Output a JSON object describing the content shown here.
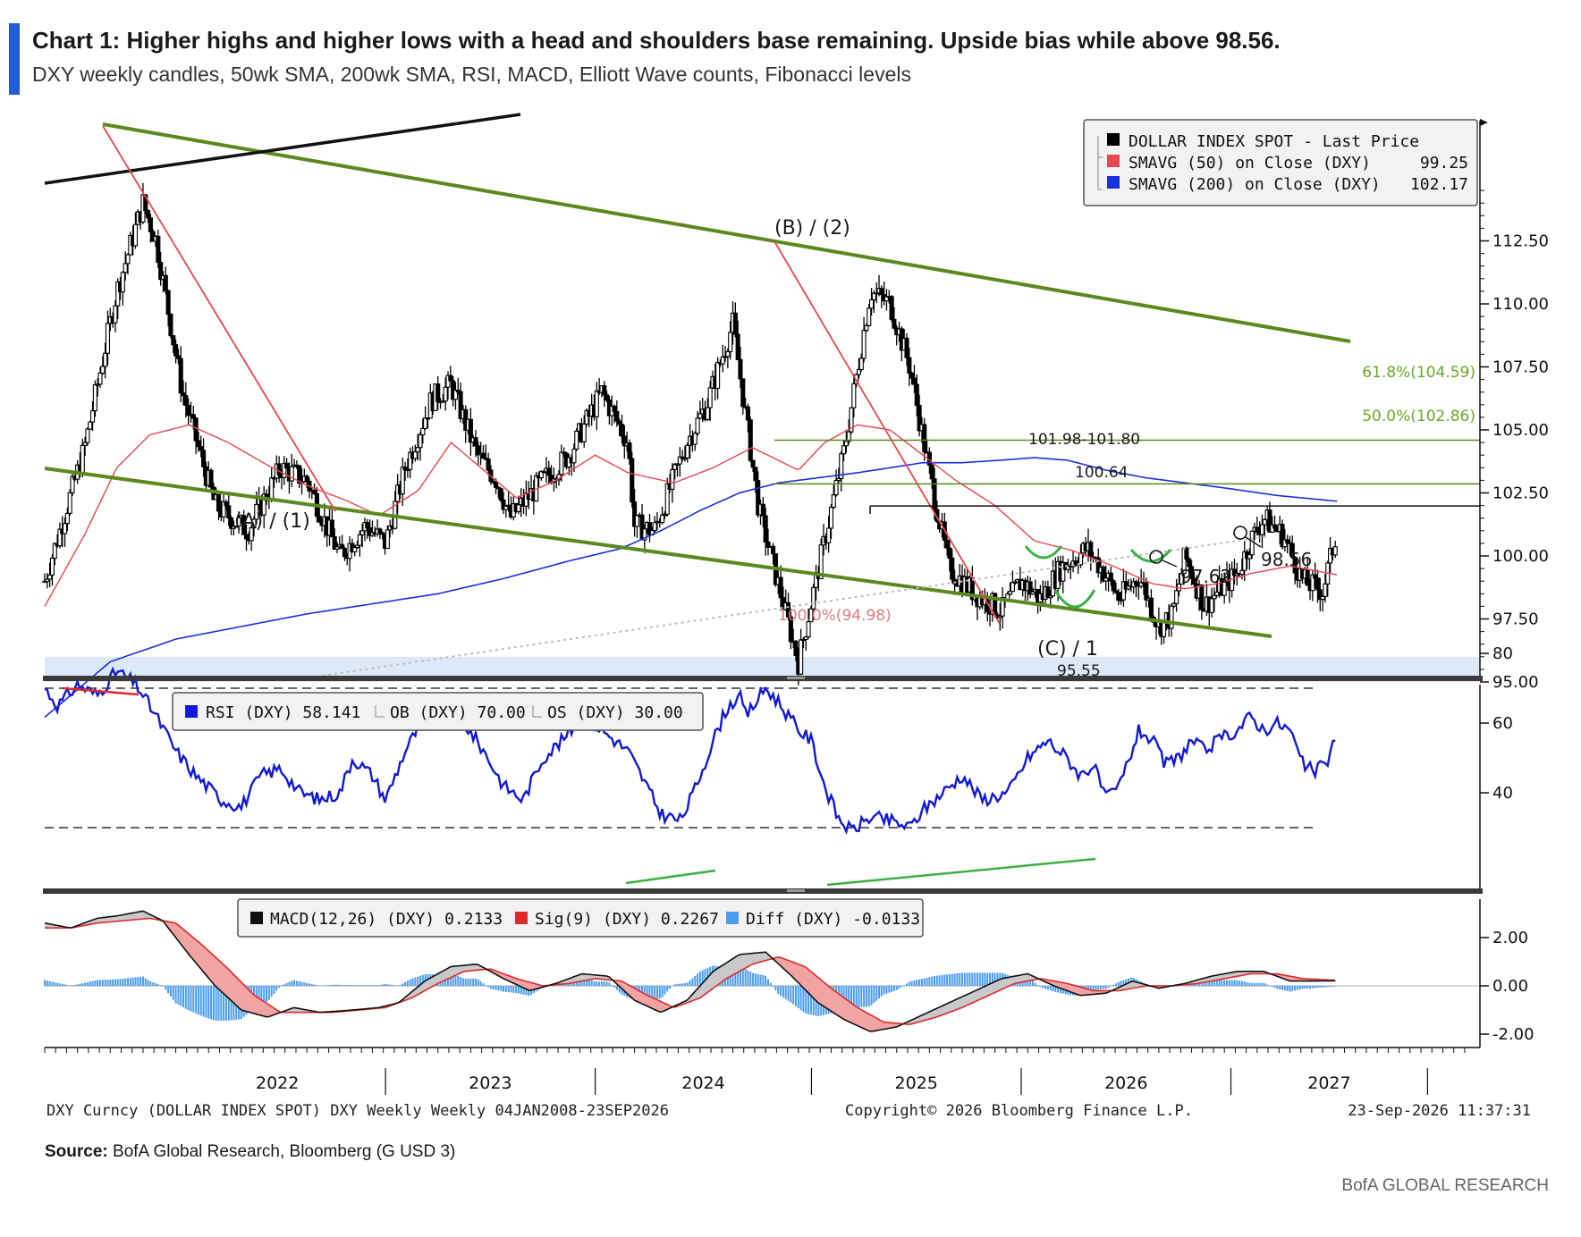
{
  "header": {
    "title": "Chart 1: Higher highs and higher lows with a head and shoulders base remaining. Upside bias while above 98.56.",
    "subtitle": "DXY weekly candles, 50wk SMA, 200wk SMA, RSI, MACD, Elliott Wave counts, Fibonacci levels"
  },
  "footer": {
    "source_label": "Source:",
    "source_text": "BofA Global Research, Bloomberg (G USD 3)",
    "brand": "BofA GLOBAL RESEARCH",
    "bloomberg_left": "DXY Curncy (DOLLAR INDEX SPOT) DXY Weekly Weekly 04JAN2008-23SEP2026",
    "bloomberg_center": "Copyright© 2026 Bloomberg Finance L.P.",
    "bloomberg_right": "23-Sep-2026 11:37:31"
  },
  "colors": {
    "accent": "#1f5fd6",
    "candle": "#000000",
    "sma50": "#e8474f",
    "sma200": "#1a2fe0",
    "channel": "#5a8a1e",
    "fib_text": "#6aa82a",
    "downtrend": "#e8474f",
    "rsi": "#1219d6",
    "macd": "#111111",
    "signal": "#e02a2a",
    "diff": "#4a9cf0",
    "support_zone": "#dde9f8"
  },
  "chart_data": [
    {
      "type": "candlestick",
      "panel": "price",
      "x_axis": {
        "labels": [
          "2022",
          "2023",
          "2024",
          "2025",
          "2026",
          "2027"
        ]
      },
      "y_axis": {
        "ticks": [
          "112.50",
          "110.00",
          "107.50",
          "105.00",
          "102.50",
          "100.00",
          "97.50",
          "95.00"
        ],
        "ylim": [
          93,
          116
        ]
      },
      "legend": [
        {
          "label": "DOLLAR INDEX SPOT - Last Price",
          "value": "",
          "color": "#000000"
        },
        {
          "label": "SMAVG (50)  on Close (DXY)",
          "value": "99.25",
          "color": "#e8474f"
        },
        {
          "label": "SMAVG (200)  on Close (DXY)",
          "value": "102.17",
          "color": "#1a2fe0"
        }
      ],
      "legend_position": "top-right",
      "annotations": {
        "fib_618": "61.8%(104.59)",
        "fib_500": "50.0%(102.86)",
        "fib_100": "100.0%(94.98)",
        "resistance": "101.98-101.80",
        "high_label": "100.64",
        "low_97": "97.62",
        "low_98": "98.56",
        "wave_a": "(A) / (1)",
        "wave_b": "(B) / (2)",
        "wave_c": "(C) / 1",
        "low_95": "95.55"
      },
      "levels": {
        "fib_618": 104.59,
        "fib_500": 102.86,
        "resistance": 101.98,
        "fib_100": 94.98,
        "zone_low": 95.0,
        "zone_high": 96.0
      },
      "anchors": [
        [
          2021.0,
          99.0
        ],
        [
          2021.3,
          104.2
        ],
        [
          2021.55,
          110.5
        ],
        [
          2021.75,
          114.0
        ],
        [
          2021.85,
          112.5
        ],
        [
          2022.05,
          106.5
        ],
        [
          2022.3,
          102.0
        ],
        [
          2022.55,
          101.0
        ],
        [
          2022.8,
          103.5
        ],
        [
          2023.0,
          103.0
        ],
        [
          2023.25,
          100.0
        ],
        [
          2023.45,
          101.2
        ],
        [
          2023.6,
          100.5
        ],
        [
          2023.75,
          103.5
        ],
        [
          2023.95,
          106.2
        ],
        [
          2024.1,
          106.8
        ],
        [
          2024.3,
          104.0
        ],
        [
          2024.45,
          103.0
        ],
        [
          2024.55,
          101.5
        ],
        [
          2024.8,
          103.0
        ],
        [
          2025.0,
          104.0
        ],
        [
          2025.25,
          106.5
        ],
        [
          2025.45,
          104.5
        ],
        [
          2025.5,
          101.2
        ],
        [
          2025.65,
          101.0
        ],
        [
          2025.9,
          104.5
        ],
        [
          2026.05,
          106.0
        ],
        [
          2026.25,
          109.2
        ],
        [
          2026.45,
          101.8
        ],
        [
          2026.75,
          95.8
        ],
        [
          2027.1,
          104.2
        ],
        [
          2027.3,
          110.5
        ],
        [
          2027.45,
          110.0
        ],
        [
          2027.6,
          107.5
        ],
        [
          2027.75,
          103.3
        ],
        [
          2027.9,
          99.5
        ],
        [
          2028.1,
          98.5
        ],
        [
          2028.3,
          97.8
        ],
        [
          2028.45,
          99.0
        ],
        [
          2028.6,
          98.3
        ],
        [
          2028.75,
          99.5
        ],
        [
          2028.95,
          100.3
        ],
        [
          2029.05,
          99.6
        ],
        [
          2029.2,
          98.3
        ],
        [
          2029.35,
          99.2
        ],
        [
          2029.5,
          97.2
        ],
        [
          2029.6,
          97.6
        ],
        [
          2029.7,
          100.0
        ],
        [
          2029.85,
          98.0
        ],
        [
          2029.95,
          98.6
        ],
        [
          2030.1,
          99.3
        ],
        [
          2030.2,
          100.6
        ],
        [
          2030.3,
          101.5
        ],
        [
          2030.45,
          100.8
        ],
        [
          2030.6,
          99.0
        ],
        [
          2030.75,
          98.6
        ],
        [
          2030.86,
          101.0
        ]
      ],
      "sma50": [
        [
          2021.0,
          98.0
        ],
        [
          2021.3,
          100.8
        ],
        [
          2021.55,
          103.5
        ],
        [
          2021.8,
          104.8
        ],
        [
          2022.1,
          105.2
        ],
        [
          2022.4,
          104.5
        ],
        [
          2022.7,
          103.6
        ],
        [
          2023.0,
          102.8
        ],
        [
          2023.3,
          102.2
        ],
        [
          2023.55,
          101.6
        ],
        [
          2023.85,
          102.6
        ],
        [
          2024.1,
          104.5
        ],
        [
          2024.35,
          103.4
        ],
        [
          2024.6,
          102.3
        ],
        [
          2024.9,
          103.0
        ],
        [
          2025.2,
          104.0
        ],
        [
          2025.45,
          103.3
        ],
        [
          2025.8,
          102.9
        ],
        [
          2026.1,
          103.5
        ],
        [
          2026.4,
          104.3
        ],
        [
          2026.75,
          103.4
        ],
        [
          2026.95,
          104.5
        ],
        [
          2027.2,
          105.2
        ],
        [
          2027.45,
          105.0
        ],
        [
          2027.7,
          104.0
        ],
        [
          2027.95,
          103.0
        ],
        [
          2028.25,
          102.0
        ],
        [
          2028.55,
          100.6
        ],
        [
          2028.85,
          100.2
        ],
        [
          2029.15,
          99.6
        ],
        [
          2029.45,
          98.9
        ],
        [
          2029.7,
          98.7
        ],
        [
          2029.95,
          98.9
        ],
        [
          2030.2,
          99.3
        ],
        [
          2030.5,
          99.6
        ],
        [
          2030.86,
          99.25
        ]
      ],
      "sma200": [
        [
          2021.0,
          93.6
        ],
        [
          2021.5,
          95.8
        ],
        [
          2022.0,
          96.7
        ],
        [
          2022.5,
          97.2
        ],
        [
          2023.0,
          97.7
        ],
        [
          2023.5,
          98.1
        ],
        [
          2024.0,
          98.5
        ],
        [
          2024.5,
          99.1
        ],
        [
          2025.0,
          99.8
        ],
        [
          2025.4,
          100.3
        ],
        [
          2025.7,
          101.0
        ],
        [
          2026.0,
          101.8
        ],
        [
          2026.3,
          102.5
        ],
        [
          2026.6,
          102.9
        ],
        [
          2026.9,
          103.1
        ],
        [
          2027.2,
          103.3
        ],
        [
          2027.45,
          103.5
        ],
        [
          2027.7,
          103.7
        ],
        [
          2028.0,
          103.7
        ],
        [
          2028.3,
          103.8
        ],
        [
          2028.55,
          103.9
        ],
        [
          2028.8,
          103.8
        ],
        [
          2029.1,
          103.4
        ],
        [
          2029.4,
          103.1
        ],
        [
          2029.7,
          102.9
        ],
        [
          2030.0,
          102.7
        ],
        [
          2030.4,
          102.4
        ],
        [
          2030.86,
          102.17
        ]
      ]
    },
    {
      "type": "line",
      "panel": "rsi",
      "legend": [
        {
          "label": "RSI (DXY) 58.141",
          "color": "#1219d6"
        },
        {
          "label": "OB (DXY) 70.00",
          "color": "#000000"
        },
        {
          "label": "OS (DXY) 30.00",
          "color": "#000000"
        }
      ],
      "y_axis": {
        "ticks": [
          "80",
          "60",
          "40"
        ],
        "ylim": [
          25,
          82
        ]
      },
      "levels": {
        "ob": 70,
        "os": 30
      },
      "anchors": [
        [
          2021.0,
          70
        ],
        [
          2021.1,
          65
        ],
        [
          2021.25,
          71
        ],
        [
          2021.4,
          68
        ],
        [
          2021.55,
          75
        ],
        [
          2021.7,
          71
        ],
        [
          2021.85,
          62
        ],
        [
          2022.0,
          52
        ],
        [
          2022.15,
          45
        ],
        [
          2022.35,
          38
        ],
        [
          2022.5,
          36
        ],
        [
          2022.65,
          45
        ],
        [
          2022.8,
          47
        ],
        [
          2022.95,
          40
        ],
        [
          2023.1,
          38
        ],
        [
          2023.25,
          40
        ],
        [
          2023.35,
          50
        ],
        [
          2023.5,
          45
        ],
        [
          2023.6,
          38
        ],
        [
          2023.75,
          52
        ],
        [
          2023.9,
          62
        ],
        [
          2024.05,
          65
        ],
        [
          2024.2,
          60
        ],
        [
          2024.35,
          52
        ],
        [
          2024.5,
          42
        ],
        [
          2024.65,
          38
        ],
        [
          2024.8,
          50
        ],
        [
          2024.95,
          55
        ],
        [
          2025.1,
          62
        ],
        [
          2025.25,
          58
        ],
        [
          2025.45,
          52
        ],
        [
          2025.55,
          45
        ],
        [
          2025.7,
          34
        ],
        [
          2025.85,
          32
        ],
        [
          2025.95,
          40
        ],
        [
          2026.1,
          55
        ],
        [
          2026.2,
          64
        ],
        [
          2026.3,
          68
        ],
        [
          2026.35,
          62
        ],
        [
          2026.5,
          70
        ],
        [
          2026.6,
          66
        ],
        [
          2026.75,
          58
        ],
        [
          2026.85,
          55
        ],
        [
          2026.95,
          42
        ],
        [
          2027.05,
          33
        ],
        [
          2027.15,
          29
        ],
        [
          2027.3,
          33
        ],
        [
          2027.45,
          32
        ],
        [
          2027.6,
          30
        ],
        [
          2027.7,
          35
        ],
        [
          2027.85,
          40
        ],
        [
          2028.0,
          45
        ],
        [
          2028.15,
          38
        ],
        [
          2028.35,
          40
        ],
        [
          2028.5,
          50
        ],
        [
          2028.65,
          55
        ],
        [
          2028.8,
          50
        ],
        [
          2028.9,
          45
        ],
        [
          2029.0,
          48
        ],
        [
          2029.1,
          38
        ],
        [
          2029.2,
          42
        ],
        [
          2029.35,
          58
        ],
        [
          2029.45,
          55
        ],
        [
          2029.55,
          48
        ],
        [
          2029.65,
          50
        ],
        [
          2029.75,
          55
        ],
        [
          2029.85,
          52
        ],
        [
          2029.95,
          55
        ],
        [
          2030.1,
          58
        ],
        [
          2030.2,
          62
        ],
        [
          2030.3,
          58
        ],
        [
          2030.4,
          60
        ],
        [
          2030.5,
          58
        ],
        [
          2030.6,
          48
        ],
        [
          2030.7,
          46
        ],
        [
          2030.8,
          50
        ],
        [
          2030.86,
          58.141
        ]
      ]
    },
    {
      "type": "line",
      "panel": "macd",
      "legend": [
        {
          "label": "MACD(12,26) (DXY) 0.2133",
          "color": "#111111"
        },
        {
          "label": "Sig(9) (DXY) 0.2267",
          "color": "#e02a2a"
        },
        {
          "label": "Diff (DXY) -0.0133",
          "color": "#4a9cf0"
        }
      ],
      "y_axis": {
        "ticks": [
          "2.00",
          "0.00",
          "-2.00"
        ],
        "ylim": [
          -2.6,
          3.6
        ]
      },
      "macd_anchors": [
        [
          2021.0,
          2.6
        ],
        [
          2021.2,
          2.4
        ],
        [
          2021.4,
          2.8
        ],
        [
          2021.55,
          2.9
        ],
        [
          2021.75,
          3.1
        ],
        [
          2021.9,
          2.7
        ],
        [
          2022.1,
          1.3
        ],
        [
          2022.3,
          0.0
        ],
        [
          2022.5,
          -1.0
        ],
        [
          2022.7,
          -1.3
        ],
        [
          2022.9,
          -0.9
        ],
        [
          2023.1,
          -1.1
        ],
        [
          2023.35,
          -1.0
        ],
        [
          2023.55,
          -0.9
        ],
        [
          2023.7,
          -0.7
        ],
        [
          2023.9,
          0.2
        ],
        [
          2024.1,
          0.8
        ],
        [
          2024.3,
          0.9
        ],
        [
          2024.5,
          0.3
        ],
        [
          2024.7,
          -0.2
        ],
        [
          2024.9,
          0.1
        ],
        [
          2025.1,
          0.5
        ],
        [
          2025.3,
          0.4
        ],
        [
          2025.5,
          -0.6
        ],
        [
          2025.7,
          -1.1
        ],
        [
          2025.9,
          -0.6
        ],
        [
          2026.1,
          0.6
        ],
        [
          2026.3,
          1.3
        ],
        [
          2026.5,
          1.4
        ],
        [
          2026.7,
          0.4
        ],
        [
          2026.9,
          -0.7
        ],
        [
          2027.1,
          -1.4
        ],
        [
          2027.3,
          -1.9
        ],
        [
          2027.5,
          -1.7
        ],
        [
          2027.7,
          -1.2
        ],
        [
          2027.9,
          -0.7
        ],
        [
          2028.1,
          -0.2
        ],
        [
          2028.3,
          0.3
        ],
        [
          2028.5,
          0.5
        ],
        [
          2028.7,
          0.0
        ],
        [
          2028.9,
          -0.4
        ],
        [
          2029.1,
          -0.3
        ],
        [
          2029.3,
          0.2
        ],
        [
          2029.5,
          -0.1
        ],
        [
          2029.7,
          0.1
        ],
        [
          2029.9,
          0.4
        ],
        [
          2030.1,
          0.6
        ],
        [
          2030.3,
          0.6
        ],
        [
          2030.5,
          0.2
        ],
        [
          2030.7,
          0.2
        ],
        [
          2030.86,
          0.2133
        ]
      ],
      "signal_anchors": [
        [
          2021.0,
          2.4
        ],
        [
          2021.2,
          2.4
        ],
        [
          2021.4,
          2.6
        ],
        [
          2021.6,
          2.7
        ],
        [
          2021.8,
          2.8
        ],
        [
          2022.0,
          2.6
        ],
        [
          2022.2,
          1.7
        ],
        [
          2022.4,
          0.7
        ],
        [
          2022.6,
          -0.4
        ],
        [
          2022.8,
          -1.1
        ],
        [
          2023.0,
          -1.1
        ],
        [
          2023.2,
          -1.1
        ],
        [
          2023.4,
          -1.0
        ],
        [
          2023.6,
          -0.9
        ],
        [
          2023.8,
          -0.5
        ],
        [
          2024.0,
          0.1
        ],
        [
          2024.2,
          0.6
        ],
        [
          2024.4,
          0.7
        ],
        [
          2024.6,
          0.3
        ],
        [
          2024.8,
          0.0
        ],
        [
          2025.0,
          0.1
        ],
        [
          2025.2,
          0.3
        ],
        [
          2025.4,
          0.2
        ],
        [
          2025.6,
          -0.4
        ],
        [
          2025.8,
          -0.9
        ],
        [
          2026.0,
          -0.5
        ],
        [
          2026.2,
          0.3
        ],
        [
          2026.4,
          0.9
        ],
        [
          2026.6,
          1.2
        ],
        [
          2026.8,
          0.8
        ],
        [
          2027.0,
          -0.1
        ],
        [
          2027.2,
          -0.9
        ],
        [
          2027.4,
          -1.5
        ],
        [
          2027.6,
          -1.6
        ],
        [
          2027.8,
          -1.3
        ],
        [
          2028.0,
          -0.9
        ],
        [
          2028.2,
          -0.4
        ],
        [
          2028.4,
          0.1
        ],
        [
          2028.6,
          0.3
        ],
        [
          2028.8,
          0.1
        ],
        [
          2029.0,
          -0.2
        ],
        [
          2029.2,
          -0.2
        ],
        [
          2029.4,
          0.0
        ],
        [
          2029.6,
          0.0
        ],
        [
          2029.8,
          0.1
        ],
        [
          2030.0,
          0.3
        ],
        [
          2030.2,
          0.5
        ],
        [
          2030.4,
          0.5
        ],
        [
          2030.6,
          0.3
        ],
        [
          2030.86,
          0.2267
        ]
      ]
    }
  ]
}
